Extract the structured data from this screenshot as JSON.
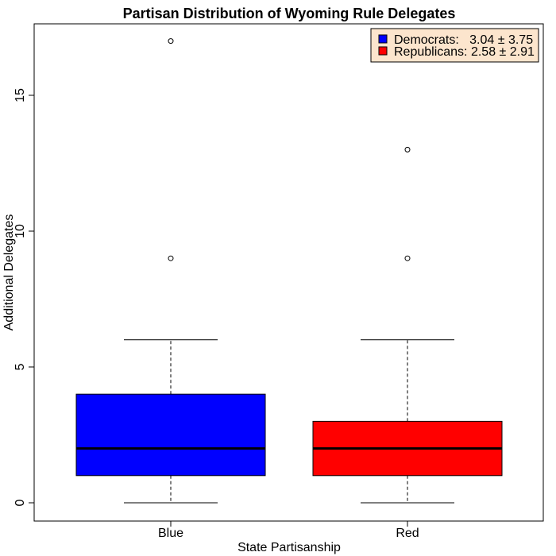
{
  "chart_data": {
    "type": "boxplot",
    "title": "Partisan Distribution of Wyoming Rule Delegates",
    "xlabel": "State Partisanship",
    "ylabel": "Additional Delegates",
    "categories": [
      "Blue",
      "Red"
    ],
    "ylim": [
      -0.6,
      17.6
    ],
    "yticks": [
      0,
      5,
      10,
      15
    ],
    "grid": false,
    "legend": {
      "position": "top-right",
      "background": "#fce5cd",
      "entries": [
        {
          "label": "Democrats:   3.04 ± 3.75",
          "color": "#0000ff"
        },
        {
          "label": "Republicans: 2.58 ± 2.91",
          "color": "#ff0000"
        }
      ]
    },
    "boxes": [
      {
        "category": "Blue",
        "color": "#0000ff",
        "whisker_low": 0,
        "q1": 1,
        "median": 2,
        "q3": 4,
        "whisker_high": 6,
        "outliers": [
          9,
          17
        ]
      },
      {
        "category": "Red",
        "color": "#ff0000",
        "whisker_low": 0,
        "q1": 1,
        "median": 2,
        "q3": 3,
        "whisker_high": 6,
        "outliers": [
          9,
          13
        ]
      }
    ]
  }
}
